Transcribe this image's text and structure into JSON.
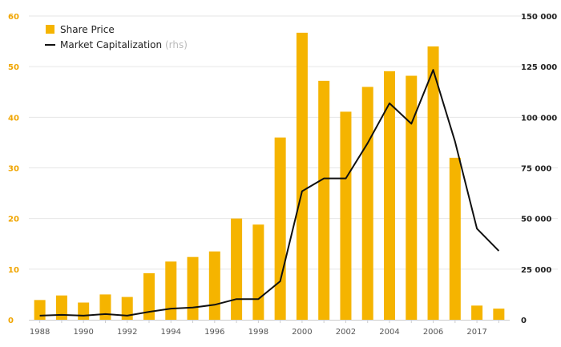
{
  "chart_data": {
    "type": "bar",
    "title": "",
    "xlabel": "",
    "ylabel": "",
    "x": [
      1988,
      1989,
      1990,
      1991,
      1992,
      1993,
      1994,
      1995,
      1996,
      1997,
      1998,
      1999,
      2000,
      2001,
      2002,
      2003,
      2004,
      2005,
      2006,
      2007,
      2017,
      2018
    ],
    "x_tick_labels": [
      "1988",
      "",
      "1990",
      "",
      "1992",
      "",
      "1994",
      "",
      "1996",
      "",
      "1998",
      "",
      "2000",
      "",
      "2002",
      "",
      "2004",
      "",
      "2006",
      "",
      "2017",
      ""
    ],
    "series": [
      {
        "name": "Share Price",
        "type": "bar",
        "axis": "left",
        "color": "#f5b400",
        "values": [
          3.9,
          4.8,
          3.4,
          5.0,
          4.5,
          9.2,
          11.5,
          12.4,
          13.5,
          20.0,
          18.8,
          36.0,
          56.7,
          47.2,
          41.1,
          46.0,
          49.1,
          48.2,
          54.0,
          32.0,
          2.8,
          2.2
        ]
      },
      {
        "name": "Market Capitalization",
        "name_suffix": "(rhs)",
        "type": "line",
        "axis": "right",
        "color": "#111111",
        "values": [
          2000,
          2400,
          2000,
          2800,
          2000,
          3900,
          5500,
          6000,
          7400,
          10200,
          10200,
          19000,
          63500,
          69800,
          69800,
          87200,
          106900,
          96800,
          123400,
          88000,
          45000,
          34000
        ]
      }
    ],
    "y_left": {
      "ylim": [
        0,
        60
      ],
      "ticks": [
        "0",
        "10",
        "20",
        "30",
        "40",
        "50",
        "60"
      ],
      "tick_color": "#f0a500"
    },
    "y_right": {
      "ylim": [
        0,
        150000
      ],
      "ticks": [
        "0",
        "25 000",
        "50 000",
        "75 000",
        "100 000",
        "125 000",
        "150 000"
      ],
      "tick_color": "#222222"
    },
    "grid": true,
    "grid_color": "#e6e6e6",
    "legend_position": "top-left"
  }
}
